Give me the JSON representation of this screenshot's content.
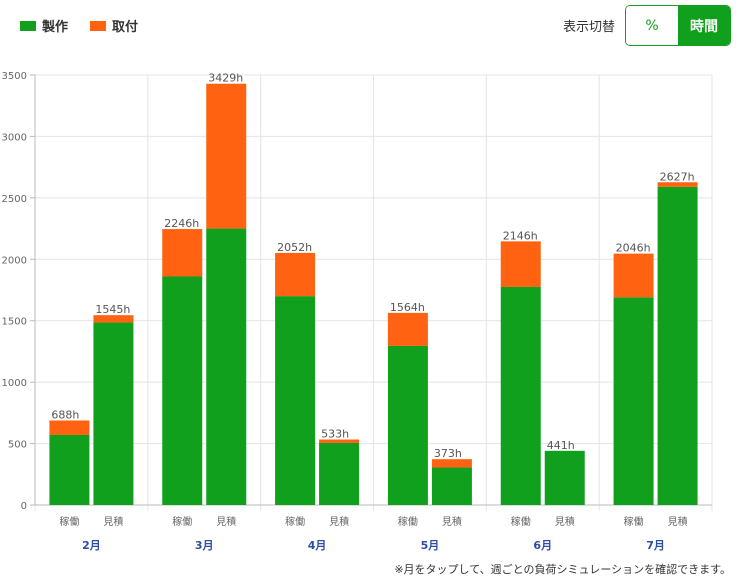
{
  "legend": {
    "items": [
      {
        "label": "製作",
        "color": "#11a01e"
      },
      {
        "label": "取付",
        "color": "#ff6312"
      }
    ]
  },
  "toggle": {
    "label": "表示切替",
    "percent_label": "%",
    "hours_label": "時間",
    "selected": "時間"
  },
  "footnote": "※月をタップして、週ごとの負荷シミュレーションを確認できます。",
  "chart_data": {
    "type": "bar",
    "stacked": true,
    "ylim": [
      0,
      3500
    ],
    "yticks": [
      0,
      500,
      1000,
      1500,
      2000,
      2500,
      3000,
      3500
    ],
    "grid": true,
    "legend_position": "top-left",
    "months": [
      "2月",
      "3月",
      "4月",
      "5月",
      "6月",
      "7月"
    ],
    "categories": [
      "稼働",
      "見積",
      "稼働",
      "見積",
      "稼働",
      "見積",
      "稼働",
      "見積",
      "稼働",
      "見積",
      "稼働",
      "見積"
    ],
    "series": [
      {
        "name": "製作",
        "color": "#11a01e",
        "values": [
          570,
          1485,
          1860,
          2250,
          1700,
          505,
          1295,
          305,
          1775,
          441,
          1690,
          2590
        ]
      },
      {
        "name": "取付",
        "color": "#ff6312",
        "values": [
          118,
          60,
          386,
          1179,
          352,
          28,
          269,
          68,
          371,
          0,
          356,
          37
        ]
      }
    ],
    "totals": [
      "688h",
      "1545h",
      "2246h",
      "3429h",
      "2052h",
      "533h",
      "1564h",
      "373h",
      "2146h",
      "441h",
      "2046h",
      "2627h"
    ]
  }
}
